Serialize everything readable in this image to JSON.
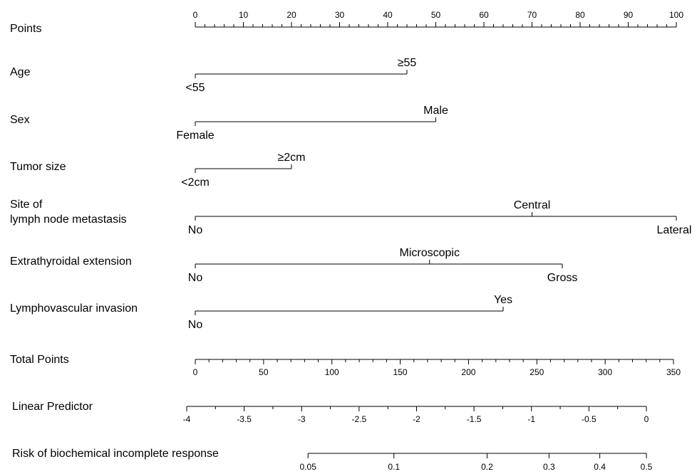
{
  "chart_data": {
    "type": "nomogram",
    "scales": [
      {
        "key": "points",
        "label": "Points",
        "range": [
          0,
          100
        ],
        "major_ticks": [
          0,
          10,
          20,
          30,
          40,
          50,
          60,
          70,
          80,
          90,
          100
        ],
        "minor_step": 2,
        "tick_labels_position": "above"
      },
      {
        "key": "total_points",
        "label": "Total Points",
        "range": [
          0,
          350
        ],
        "major_ticks": [
          0,
          50,
          100,
          150,
          200,
          250,
          300,
          350
        ],
        "minor_step": 10,
        "tick_labels_position": "below"
      },
      {
        "key": "linear_predictor",
        "label": "Linear Predictor",
        "range": [
          -4,
          0
        ],
        "major_ticks": [
          -4,
          -3.5,
          -3,
          -2.5,
          -2,
          -1.5,
          -1,
          -0.5,
          0
        ],
        "minor_step": 0.25,
        "tick_labels_position": "below"
      },
      {
        "key": "risk",
        "label": "Risk of biochemical incomplete response",
        "ticks": [
          0.05,
          0.1,
          0.2,
          0.3,
          0.4,
          0.5
        ],
        "tick_labels_position": "below"
      }
    ],
    "variables": [
      {
        "label": "Age",
        "levels": [
          {
            "name": "<55",
            "points": 0,
            "label_position": "below"
          },
          {
            "name": "≥55",
            "points": 44,
            "label_position": "above"
          }
        ]
      },
      {
        "label": "Sex",
        "levels": [
          {
            "name": "Female",
            "points": 0,
            "label_position": "below"
          },
          {
            "name": "Male",
            "points": 50,
            "label_position": "above"
          }
        ]
      },
      {
        "label": "Tumor size",
        "levels": [
          {
            "name": "<2cm",
            "points": 0,
            "label_position": "below"
          },
          {
            "name": "≥2cm",
            "points": 20,
            "label_position": "above"
          }
        ]
      },
      {
        "label": "Site of",
        "label2": "lymph node metastasis",
        "levels": [
          {
            "name": "No",
            "points": 0,
            "label_position": "below"
          },
          {
            "name": "Central",
            "points": 70,
            "label_position": "above"
          },
          {
            "name": "Lateral",
            "points": 100,
            "label_position": "below"
          }
        ]
      },
      {
        "label": "Extrathyroidal extension",
        "levels": [
          {
            "name": "No",
            "points": 0,
            "label_position": "below"
          },
          {
            "name": "Microscopic",
            "points": 48.7,
            "label_position": "above"
          },
          {
            "name": "Gross",
            "points": 76.3,
            "label_position": "below"
          }
        ]
      },
      {
        "label": "Lymphovascular invasion",
        "levels": [
          {
            "name": "No",
            "points": 0,
            "label_position": "below"
          },
          {
            "name": "Yes",
            "points": 64,
            "label_position": "above"
          }
        ]
      }
    ],
    "color": "#000000"
  }
}
